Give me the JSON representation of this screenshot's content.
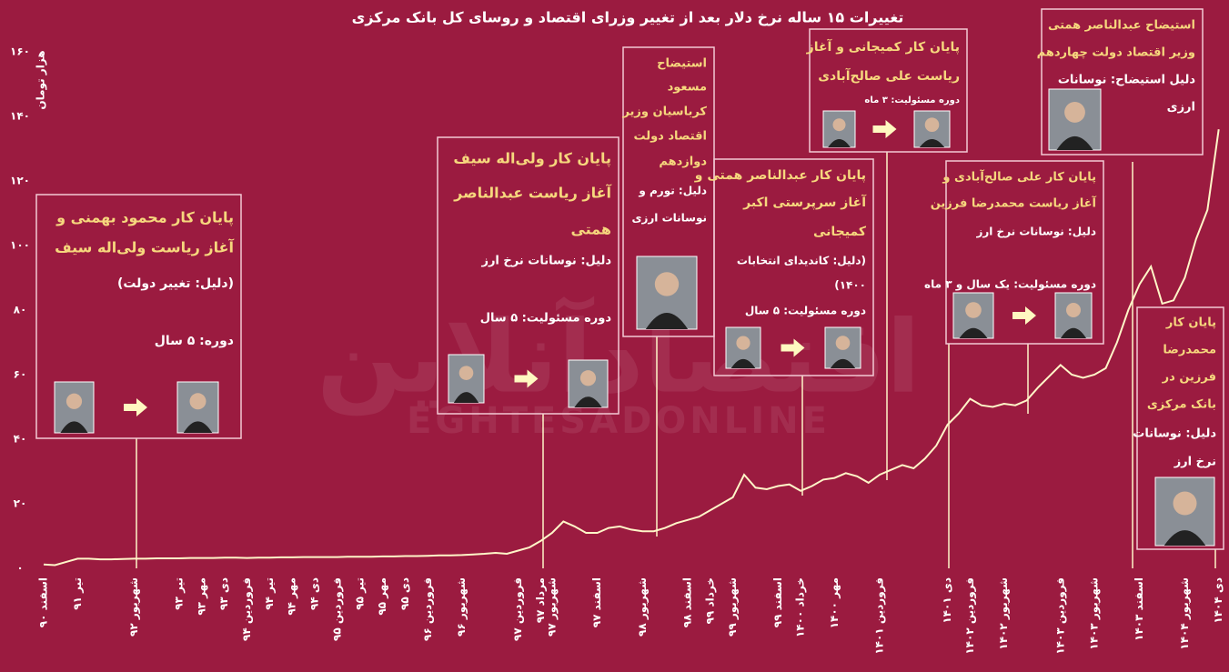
{
  "chart_data": {
    "type": "line",
    "title": "تغییرات ۱۵ ساله نرخ دلار بعد از تغییر وزرای اقتصاد و روسای کل بانک مرکزی",
    "y_label": "هزار تومان",
    "watermark": {
      "text": "اقتصادآنلاین",
      "subtext": "EGHTESADONLINE"
    },
    "categories": [
      "اسفند ۹۰",
      null,
      null,
      "تیر ۹۱",
      null,
      null,
      null,
      null,
      "شهریور ۹۲",
      null,
      null,
      null,
      "تیر ۹۳",
      null,
      "مهر ۹۳",
      null,
      "دی ۹۳",
      null,
      "فروردین ۹۴",
      null,
      "تیر ۹۴",
      null,
      "مهر ۹۴",
      null,
      "دی ۹۴",
      null,
      "فروردین ۹۵",
      null,
      "تیر ۹۵",
      null,
      "مهر ۹۵",
      null,
      "دی ۹۵",
      null,
      "فروردین ۹۶",
      null,
      null,
      "شهریور ۹۶",
      null,
      null,
      null,
      null,
      "فروردین ۹۷",
      null,
      "مرداد ۹۷",
      "شهریور ۹۷",
      null,
      null,
      null,
      "اسفند ۹۷",
      null,
      null,
      null,
      "شهریور ۹۸",
      null,
      null,
      null,
      "اسفند ۹۸",
      null,
      "خرداد ۹۹",
      null,
      "شهریور ۹۹",
      null,
      null,
      null,
      "اسفند ۹۹",
      null,
      "خرداد ۱۴۰۰",
      null,
      null,
      "مهر ۱۴۰۰",
      null,
      null,
      null,
      "فروردین ۱۴۰۱",
      null,
      null,
      null,
      null,
      null,
      "دی ۱۴۰۱",
      null,
      "فروردین ۱۴۰۲",
      null,
      null,
      "شهریور ۱۴۰۲",
      null,
      null,
      null,
      null,
      "فروردین ۱۴۰۳",
      null,
      null,
      "شهریور ۱۴۰۳",
      null,
      null,
      null,
      "اسفند ۱۴۰۳",
      null,
      null,
      null,
      "شهریور ۱۴۰۴",
      null,
      null,
      "دی ۱۴۰۴"
    ],
    "values": [
      1.2,
      1.0,
      2,
      3,
      3,
      2.8,
      2.8,
      2.9,
      3.0,
      3.0,
      3.1,
      3.1,
      3.1,
      3.2,
      3.2,
      3.2,
      3.3,
      3.3,
      3.2,
      3.3,
      3.3,
      3.4,
      3.4,
      3.5,
      3.5,
      3.5,
      3.5,
      3.6,
      3.6,
      3.6,
      3.7,
      3.7,
      3.8,
      3.8,
      3.9,
      4.0,
      4.0,
      4.1,
      4.3,
      4.5,
      4.8,
      4.5,
      5.5,
      6.5,
      8.5,
      11,
      14.5,
      13,
      11,
      11,
      12.5,
      13,
      12,
      11.5,
      11.5,
      12.5,
      14,
      15,
      16,
      18,
      20,
      22,
      29,
      25,
      24.5,
      25.5,
      26,
      24,
      25.5,
      27.5,
      28,
      29.5,
      28.5,
      26.5,
      29,
      30.5,
      32,
      31,
      34,
      38,
      44.5,
      48,
      52.5,
      50.5,
      50,
      51,
      50.5,
      52,
      56,
      59.5,
      63,
      60,
      59,
      60,
      62,
      70,
      80,
      88,
      93.5,
      82,
      83,
      90,
      102,
      111,
      136
    ],
    "color": "#fff6c8",
    "ylim": [
      0,
      160
    ],
    "yticks": [
      {
        "value": 0,
        "label": "۰"
      },
      {
        "value": 20,
        "label": "۲۰"
      },
      {
        "value": 40,
        "label": "۴۰"
      },
      {
        "value": 60,
        "label": "۶۰"
      },
      {
        "value": 80,
        "label": "۸۰"
      },
      {
        "value": 100,
        "label": "۱۰۰"
      },
      {
        "value": 120,
        "label": "۱۲۰"
      },
      {
        "value": 140,
        "label": "۱۴۰"
      },
      {
        "value": 160,
        "label": "۱۶۰"
      }
    ],
    "grid": false,
    "annotations": [
      {
        "lines": [
          "پایان کار محمود بهمنی و",
          "آغاز ریاست ولی‌اله سیف"
        ],
        "notes": [
          "(دلیل: تغییر دولت)",
          "دوره: ۵ سال"
        ]
      },
      {
        "lines": [
          "پایان کار ولی‌اله سیف",
          "آغاز ریاست عبدالناصر",
          "همتی"
        ],
        "notes": [
          "دلیل: نوسانات نرخ ارز",
          "دوره مسئولیت: ۵ سال"
        ]
      },
      {
        "lines": [
          "استیضاح",
          "مسعود",
          "کرباسیان وزیر",
          "اقتصاد دولت",
          "دوازدهم"
        ],
        "notes": [
          "دلیل: تورم و",
          "نوسانات ارزی"
        ]
      },
      {
        "lines": [
          "پایان کار عبدالناصر همتی و",
          "آغاز سرپرستی اکبر",
          "کمیجانی"
        ],
        "notes": [
          "(دلیل: کاندیدای انتخابات",
          "۱۴۰۰)",
          "دوره مسئولیت: ۵ سال"
        ]
      },
      {
        "lines": [
          "پایان کار کمیجانی و آغاز",
          "ریاست علی صالح‌آبادی"
        ],
        "notes": [
          "دوره مسئولیت: ۳ ماه"
        ]
      },
      {
        "lines": [
          "پایان کار علی صالح‌آبادی و",
          "آغاز ریاست محمدرضا فرزین"
        ],
        "notes": [
          "دلیل: نوسانات نرخ ارز",
          "دوره مسئولیت: یک سال و ۳ ماه"
        ]
      },
      {
        "lines": [
          "استیضاح عبدالناصر همتی",
          "وزیر اقتصاد دولت چهاردهم"
        ],
        "notes": [
          "دلیل استیضاح: نوسانات",
          "ارزی"
        ]
      },
      {
        "lines": [
          "پایان کار",
          "محمدرضا",
          "فرزین در",
          "بانک مرکزی"
        ],
        "notes": [
          "دلیل: نوسانات",
          "نرخ ارز"
        ]
      }
    ]
  }
}
